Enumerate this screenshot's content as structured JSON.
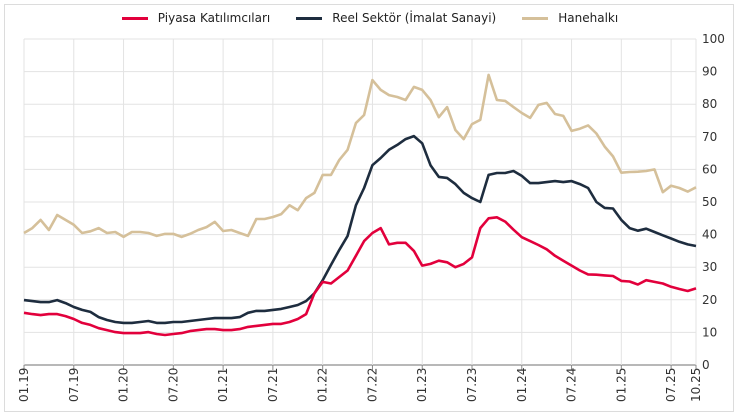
{
  "chart_data": {
    "type": "line",
    "title": "",
    "xlabel": "",
    "ylabel": "",
    "ylim": [
      0,
      100
    ],
    "y_ticks": [
      "0",
      "10",
      "20",
      "30",
      "40",
      "50",
      "60",
      "70",
      "80",
      "90",
      "100"
    ],
    "y_axis_side": "right",
    "x_range": [
      "01.19",
      "10.25"
    ],
    "x_frequency": "monthly",
    "x_ticks": [
      "01.19",
      "07.19",
      "01.20",
      "07.20",
      "01.21",
      "07.21",
      "01.22",
      "07.22",
      "01.23",
      "07.23",
      "01.24",
      "07.24",
      "01.25",
      "07.25",
      "10.25"
    ],
    "grid": true,
    "legend_position": "top",
    "series": [
      {
        "name": "Piyasa Katılımcıları",
        "color": "#e2003c",
        "values": [
          16,
          15.6,
          15.3,
          15.6,
          15.6,
          15,
          14.1,
          12.9,
          12.3,
          11.3,
          10.7,
          10.1,
          9.8,
          9.8,
          9.8,
          10.1,
          9.5,
          9.2,
          9.5,
          9.8,
          10.4,
          10.7,
          11,
          11,
          10.7,
          10.7,
          11,
          11.7,
          12,
          12.3,
          12.6,
          12.6,
          13.2,
          14.1,
          15.6,
          22,
          25.5,
          25,
          27,
          29,
          33.5,
          38,
          40.5,
          42,
          37,
          37.5,
          37.5,
          35,
          30.5,
          31,
          32,
          31.5,
          30,
          31,
          33,
          42,
          45,
          45.3,
          44,
          41.5,
          39.2,
          38,
          36.8,
          35.5,
          33.5,
          32,
          30.5,
          29,
          27.8,
          27.7,
          27.5,
          27.3,
          25.8,
          25.6,
          24.7,
          26,
          25.5,
          25,
          24,
          23.3,
          22.7,
          23.5
        ]
      },
      {
        "name": "Reel Sektör (İmalat Sanayi)",
        "color": "#1e2d3f",
        "values": [
          19.9,
          19.6,
          19.3,
          19.3,
          19.9,
          19,
          17.8,
          16.9,
          16.3,
          14.7,
          13.8,
          13.2,
          12.9,
          12.9,
          13.2,
          13.5,
          12.9,
          12.9,
          13.2,
          13.2,
          13.5,
          13.8,
          14.1,
          14.4,
          14.4,
          14.4,
          14.7,
          16,
          16.6,
          16.6,
          16.9,
          17.2,
          17.8,
          18.4,
          19.6,
          22,
          26,
          30.7,
          35.3,
          39.6,
          49,
          54.3,
          61.3,
          63.5,
          66,
          67.5,
          69.3,
          70.2,
          68,
          61.3,
          57.7,
          57.4,
          55.5,
          52.8,
          51.2,
          50,
          58.3,
          58.9,
          58.9,
          59.5,
          58,
          55.8,
          55.8,
          56.1,
          56.4,
          56.1,
          56.4,
          55.5,
          54.3,
          50,
          48.2,
          48,
          44.5,
          42,
          41.2,
          41.8,
          40.8,
          39.8,
          38.8,
          37.8,
          37,
          36.5
        ]
      },
      {
        "name": "Hanehalkı",
        "color": "#d5c09a",
        "values": [
          40.5,
          42,
          44.5,
          41.4,
          46,
          44.5,
          43,
          40.5,
          41,
          42,
          40.5,
          40.8,
          39.3,
          40.8,
          40.8,
          40.5,
          39.6,
          40.2,
          40.2,
          39.3,
          40.2,
          41.4,
          42.3,
          43.9,
          41.1,
          41.4,
          40.5,
          39.6,
          44.8,
          44.8,
          45.4,
          46.3,
          49,
          47.5,
          51.2,
          52.8,
          58.3,
          58.3,
          62.9,
          66,
          74.2,
          76.7,
          87.4,
          84.4,
          82.8,
          82.2,
          81.3,
          85.3,
          84.4,
          81.3,
          76,
          79.1,
          72.1,
          69.3,
          73.9,
          75.2,
          89,
          81.3,
          81,
          79.1,
          77.3,
          75.8,
          79.8,
          80.4,
          77,
          76.4,
          71.8,
          72.5,
          73.5,
          71,
          67,
          64,
          59,
          59.2,
          59.3,
          59.5,
          60,
          53,
          55,
          54.3,
          53.2,
          54.5
        ]
      }
    ]
  }
}
